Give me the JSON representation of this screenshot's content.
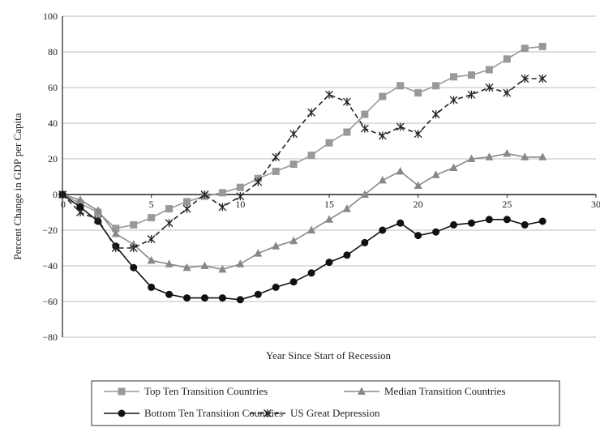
{
  "chart_data": {
    "type": "line",
    "title": "",
    "xlabel": "Year Since Start of Recession",
    "ylabel": "Percent Change in GDP per Capita",
    "xlim": [
      0,
      30
    ],
    "ylim": [
      -80,
      100
    ],
    "xticks": [
      0,
      5,
      10,
      15,
      20,
      25,
      30
    ],
    "yticks": [
      -80,
      -60,
      -40,
      -20,
      0,
      20,
      40,
      60,
      80,
      100
    ],
    "grid": "horizontal",
    "legend_position": "bottom",
    "series": [
      {
        "name": "Top Ten Transition Countries",
        "color": "#999999",
        "marker": "square",
        "dash": "solid",
        "points": [
          [
            0,
            0
          ],
          [
            1,
            -5
          ],
          [
            2,
            -10
          ],
          [
            3,
            -19
          ],
          [
            4,
            -17
          ],
          [
            5,
            -13
          ],
          [
            6,
            -8
          ],
          [
            7,
            -4
          ],
          [
            8,
            -1
          ],
          [
            9,
            1
          ],
          [
            10,
            4
          ],
          [
            11,
            9
          ],
          [
            12,
            13
          ],
          [
            13,
            17
          ],
          [
            14,
            22
          ],
          [
            15,
            29
          ],
          [
            16,
            35
          ],
          [
            17,
            45
          ],
          [
            18,
            55
          ],
          [
            19,
            61
          ],
          [
            20,
            57
          ],
          [
            21,
            61
          ],
          [
            22,
            66
          ],
          [
            23,
            67
          ],
          [
            24,
            70
          ],
          [
            25,
            76
          ],
          [
            26,
            82
          ],
          [
            27,
            83
          ]
        ]
      },
      {
        "name": "Median Transition Countries",
        "color": "#888888",
        "marker": "triangle",
        "dash": "solid",
        "points": [
          [
            0,
            0
          ],
          [
            1,
            -3
          ],
          [
            2,
            -9
          ],
          [
            3,
            -22
          ],
          [
            4,
            -28
          ],
          [
            5,
            -37
          ],
          [
            6,
            -39
          ],
          [
            7,
            -41
          ],
          [
            8,
            -40
          ],
          [
            9,
            -42
          ],
          [
            10,
            -39
          ],
          [
            11,
            -33
          ],
          [
            12,
            -29
          ],
          [
            13,
            -26
          ],
          [
            14,
            -20
          ],
          [
            15,
            -14
          ],
          [
            16,
            -8
          ],
          [
            17,
            0
          ],
          [
            18,
            8
          ],
          [
            19,
            13
          ],
          [
            20,
            5
          ],
          [
            21,
            11
          ],
          [
            22,
            15
          ],
          [
            23,
            20
          ],
          [
            24,
            21
          ],
          [
            25,
            23
          ],
          [
            26,
            21
          ],
          [
            27,
            21
          ]
        ]
      },
      {
        "name": "Bottom Ten Transition Countries",
        "color": "#111111",
        "marker": "circle",
        "dash": "solid",
        "points": [
          [
            0,
            0
          ],
          [
            1,
            -7
          ],
          [
            2,
            -15
          ],
          [
            3,
            -29
          ],
          [
            4,
            -41
          ],
          [
            5,
            -52
          ],
          [
            6,
            -56
          ],
          [
            7,
            -58
          ],
          [
            8,
            -58
          ],
          [
            9,
            -58
          ],
          [
            10,
            -59
          ],
          [
            11,
            -56
          ],
          [
            12,
            -52
          ],
          [
            13,
            -49
          ],
          [
            14,
            -44
          ],
          [
            15,
            -38
          ],
          [
            16,
            -34
          ],
          [
            17,
            -27
          ],
          [
            18,
            -20
          ],
          [
            19,
            -16
          ],
          [
            20,
            -23
          ],
          [
            21,
            -21
          ],
          [
            22,
            -17
          ],
          [
            23,
            -16
          ],
          [
            24,
            -14
          ],
          [
            25,
            -14
          ],
          [
            26,
            -17
          ],
          [
            27,
            -15
          ]
        ]
      },
      {
        "name": "US Great Depression",
        "color": "#222222",
        "marker": "asterisk",
        "dash": "dashed",
        "points": [
          [
            0,
            0
          ],
          [
            1,
            -10
          ],
          [
            2,
            -14
          ],
          [
            3,
            -30
          ],
          [
            4,
            -30
          ],
          [
            5,
            -25
          ],
          [
            6,
            -16
          ],
          [
            7,
            -8
          ],
          [
            8,
            0
          ],
          [
            9,
            -7
          ],
          [
            10,
            -1
          ],
          [
            11,
            7
          ],
          [
            12,
            21
          ],
          [
            13,
            34
          ],
          [
            14,
            46
          ],
          [
            15,
            56
          ],
          [
            16,
            52
          ],
          [
            17,
            37
          ],
          [
            18,
            33
          ],
          [
            19,
            38
          ],
          [
            20,
            34
          ],
          [
            21,
            45
          ],
          [
            22,
            53
          ],
          [
            23,
            56
          ],
          [
            24,
            60
          ],
          [
            25,
            57
          ],
          [
            26,
            65
          ],
          [
            27,
            65
          ]
        ]
      }
    ]
  }
}
